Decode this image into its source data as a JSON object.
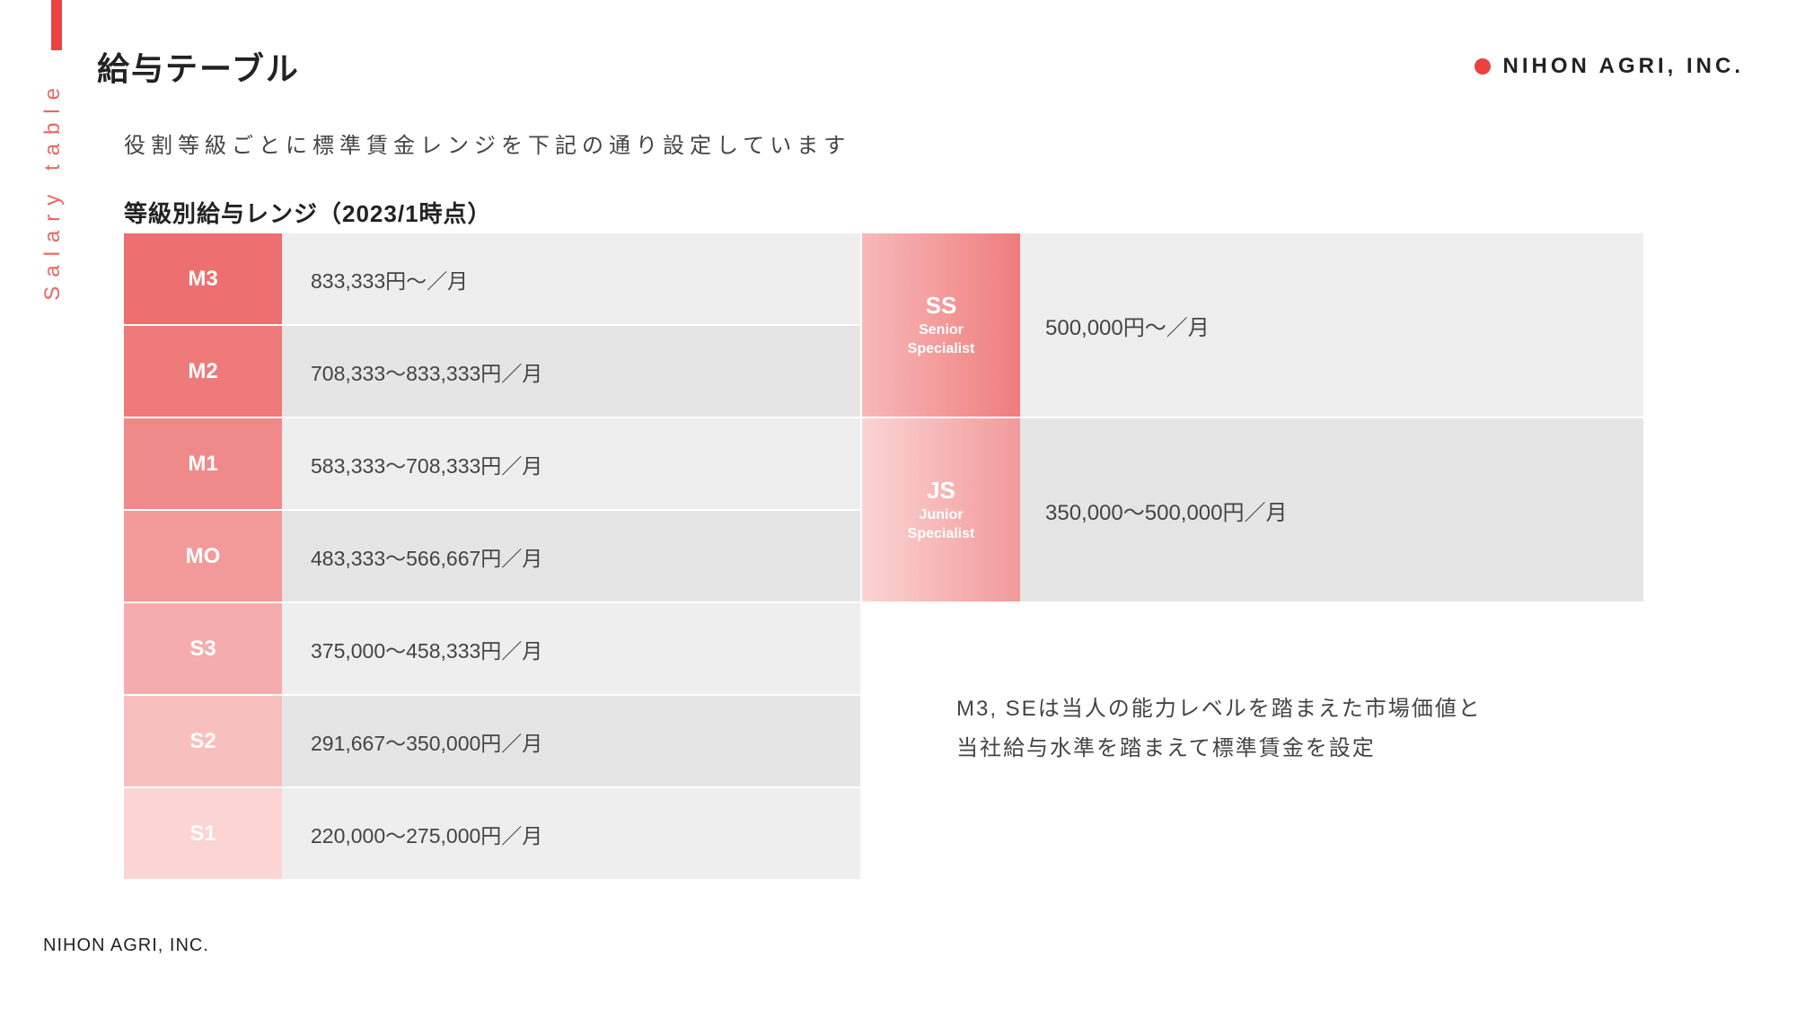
{
  "colors": {
    "accent": "#ec4141",
    "vertical_label": "#ec6666",
    "logo_dot": "#ec4141",
    "row_alt_a": "#eeeeee",
    "row_alt_b": "#e5e5e5"
  },
  "header": {
    "title": "給与テーブル",
    "vertical_label": "Salary table",
    "logo_text": "NIHON AGRI, INC."
  },
  "subtitle": "役割等級ごとに標準賃金レンジを下記の通り設定しています",
  "table_title": "等級別給与レンジ（2023/1時点）",
  "main_grades": [
    {
      "code": "M3",
      "range": "833,333円～／月",
      "grade_bg": "#ed6f6f"
    },
    {
      "code": "M2",
      "range": "708,333～833,333円／月",
      "grade_bg": "#ee7a7a"
    },
    {
      "code": "M1",
      "range": "583,333～708,333円／月",
      "grade_bg": "#f08a8a"
    },
    {
      "code": "MO",
      "range": "483,333～566,667円／月",
      "grade_bg": "#f29a9a"
    },
    {
      "code": "S3",
      "range": "375,000～458,333円／月",
      "grade_bg": "#f5acac"
    },
    {
      "code": "S2",
      "range": "291,667～350,000円／月",
      "grade_bg": "#f8bfbf"
    },
    {
      "code": "S1",
      "range": "220,000～275,000円／月",
      "grade_bg": "#fbd4d4"
    }
  ],
  "spec_grades": [
    {
      "code": "SS",
      "sub1": "Senior",
      "sub2": "Specialist",
      "range": "500,000円～／月",
      "gradient_from": "#f7b9b9",
      "gradient_to": "#ef7d7d"
    },
    {
      "code": "JS",
      "sub1": "Junior",
      "sub2": "Specialist",
      "range": "350,000～500,000円／月",
      "gradient_from": "#fbd4d4",
      "gradient_to": "#f29a9a"
    }
  ],
  "note_line1": "M3, SEは当人の能力レベルを踏まえた市場価値と",
  "note_line2": "当社給与水準を踏まえて標準賃金を設定",
  "footer": "NIHON AGRI, INC."
}
